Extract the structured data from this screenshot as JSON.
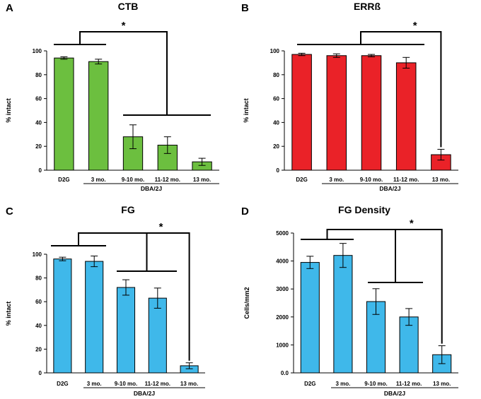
{
  "chart_data": [
    {
      "type": "bar",
      "panel": "A",
      "title": "CTB",
      "color": "#6cbf3f",
      "ylabel": "% intact",
      "xlabel": "",
      "group_label": "DBA/2J",
      "categories": [
        "D2G",
        "3 mo.",
        "9-10 mo.",
        "11-12 mo.",
        "13 mo."
      ],
      "values": [
        94,
        91,
        28,
        21,
        7
      ],
      "errors": [
        1,
        2,
        10,
        7,
        3
      ],
      "ylim": [
        0,
        100
      ],
      "yticks": [
        "0",
        "20",
        "40",
        "60",
        "80",
        "100"
      ],
      "significance": "*"
    },
    {
      "type": "bar",
      "panel": "B",
      "title": "ERRß",
      "color": "#ea2228",
      "ylabel": "% intact",
      "xlabel": "",
      "group_label": "DBA/2J",
      "categories": [
        "D2G",
        "3 mo.",
        "9-10 mo.",
        "11-12 mo.",
        "13 mo."
      ],
      "values": [
        97,
        96,
        96,
        90,
        13
      ],
      "errors": [
        1,
        1.5,
        1,
        4.5,
        4.5
      ],
      "ylim": [
        0,
        100
      ],
      "yticks": [
        "0",
        "20",
        "40",
        "60",
        "80",
        "100"
      ],
      "significance": "*"
    },
    {
      "type": "bar",
      "panel": "C",
      "title": "FG",
      "color": "#3fb8ea",
      "ylabel": "% intact",
      "xlabel": "",
      "group_label": "DBA/2J",
      "categories": [
        "D2G",
        "3 mo.",
        "9-10 mo.",
        "11-12 mo.",
        "13 mo."
      ],
      "values": [
        96,
        94,
        72,
        63,
        6
      ],
      "errors": [
        1.5,
        4.5,
        6.5,
        8.5,
        2.5
      ],
      "ylim": [
        0,
        100
      ],
      "yticks": [
        "0",
        "20",
        "40",
        "60",
        "80",
        "100"
      ],
      "significance": "*"
    },
    {
      "type": "bar",
      "panel": "D",
      "title": "FG Density",
      "color": "#3fb8ea",
      "ylabel": "Cells/mm2",
      "xlabel": "",
      "group_label": "DBA/2J",
      "categories": [
        "D2G",
        "3 mo.",
        "9-10 mo.",
        "11-12 mo.",
        "13 mo."
      ],
      "values": [
        3950,
        4200,
        2550,
        2000,
        650
      ],
      "errors": [
        220,
        430,
        460,
        300,
        320
      ],
      "ylim": [
        0,
        5000
      ],
      "yticks": [
        "0.0",
        "1000",
        "2000",
        "3000",
        "4000",
        "5000"
      ],
      "significance": "*"
    }
  ]
}
